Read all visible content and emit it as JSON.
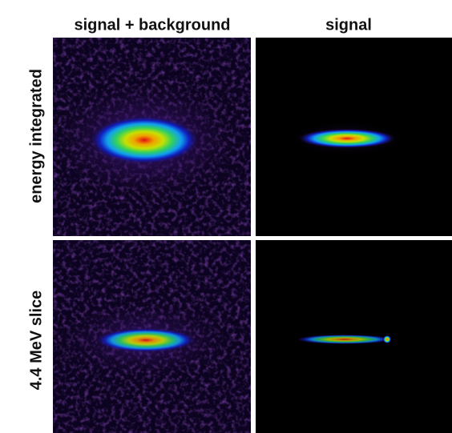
{
  "columns": [
    "signal + background",
    "signal"
  ],
  "rows": [
    "energy integrated",
    "4.4 MeV slice"
  ]
}
